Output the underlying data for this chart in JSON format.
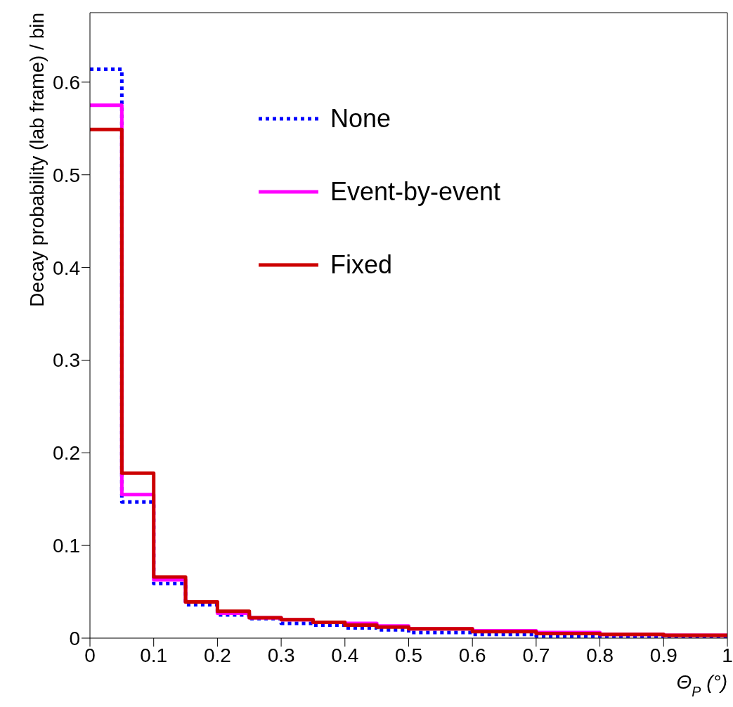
{
  "chart_data": {
    "type": "histogram",
    "ylabel": "Decay probability (lab frame) / bin",
    "xlabel": "Θ$_{P}$ (°)",
    "bins": [
      0,
      0.05,
      0.1,
      0.15,
      0.2,
      0.25,
      0.3,
      0.35,
      0.4,
      0.45,
      0.5,
      0.6,
      0.7,
      0.8,
      0.9,
      1
    ],
    "series": [
      {
        "name": "None",
        "color": "#0000ff",
        "line_style": "dotted",
        "values": [
          0.614,
          0.147,
          0.059,
          0.036,
          0.025,
          0.021,
          0.016,
          0.014,
          0.011,
          0.009,
          0.006,
          0.004,
          0.002,
          0.002,
          0.001
        ]
      },
      {
        "name": "Event-by-event",
        "color": "#ff00ff",
        "line_style": "solid",
        "values": [
          0.575,
          0.155,
          0.063,
          0.039,
          0.027,
          0.022,
          0.02,
          0.017,
          0.016,
          0.013,
          0.01,
          0.008,
          0.006,
          0.004,
          0.003
        ]
      },
      {
        "name": "Fixed",
        "color": "#cc0000",
        "line_style": "solid",
        "values": [
          0.549,
          0.178,
          0.066,
          0.039,
          0.029,
          0.022,
          0.02,
          0.017,
          0.014,
          0.012,
          0.01,
          0.007,
          0.005,
          0.004,
          0.003
        ]
      }
    ],
    "xlim": [
      0,
      1
    ],
    "xticks": [
      0,
      0.1,
      0.2,
      0.3,
      0.4,
      0.5,
      0.6,
      0.7,
      0.8,
      0.9,
      1
    ],
    "ylim": [
      0,
      0.675
    ],
    "yticks": [
      0,
      0.1,
      0.2,
      0.3,
      0.4,
      0.5,
      0.6
    ],
    "grid": false,
    "legend": "top"
  }
}
